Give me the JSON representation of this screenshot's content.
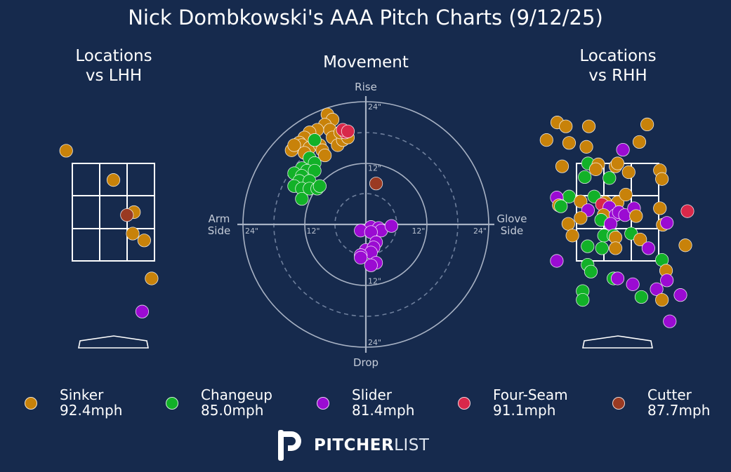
{
  "title": "Nick Dombkowski's AAA Pitch Charts (9/12/25)",
  "panels": {
    "lhh_title": "Locations\nvs LHH",
    "movement_title": "Movement",
    "rhh_title": "Locations\nvs RHH"
  },
  "movement_labels": {
    "rise": "Rise",
    "drop": "Drop",
    "arm_side": "Arm\nSide",
    "glove_side": "Glove\nSide",
    "ring_labels": [
      "12\"",
      "24\""
    ]
  },
  "colors": {
    "background": "#162a4d",
    "Sinker": "#c8820a",
    "Changeup": "#12b128",
    "Slider": "#9b0bd2",
    "Four-Seam": "#d8284a",
    "Cutter": "#9a3a22"
  },
  "legend": [
    {
      "name": "Sinker",
      "velo": "92.4mph"
    },
    {
      "name": "Changeup",
      "velo": "85.0mph"
    },
    {
      "name": "Slider",
      "velo": "81.4mph"
    },
    {
      "name": "Four-Seam",
      "velo": "91.1mph"
    },
    {
      "name": "Cutter",
      "velo": "87.7mph"
    }
  ],
  "logo": {
    "bold": "PITCHER",
    "light": "LIST"
  },
  "chart_data": [
    {
      "type": "scatter",
      "title": "Locations\nvs LHH",
      "xlabel": "",
      "ylabel": "",
      "note": "zone grid: x −1 to 1, y 0 to 1; points in zone units",
      "points": [
        {
          "pitch": "Sinker",
          "x": -1.15,
          "y": 1.13
        },
        {
          "pitch": "Sinker",
          "x": 0.0,
          "y": 0.83
        },
        {
          "pitch": "Sinker",
          "x": 0.5,
          "y": 0.5
        },
        {
          "pitch": "Cutter",
          "x": 0.33,
          "y": 0.47
        },
        {
          "pitch": "Sinker",
          "x": 0.47,
          "y": 0.28
        },
        {
          "pitch": "Sinker",
          "x": 0.75,
          "y": 0.21
        },
        {
          "pitch": "Sinker",
          "x": 0.93,
          "y": -0.18
        },
        {
          "pitch": "Slider",
          "x": 0.7,
          "y": -0.52
        }
      ]
    },
    {
      "type": "scatter",
      "title": "Movement",
      "xlabel": "Arm Side / Glove Side (in)",
      "ylabel": "Rise / Drop (in)",
      "xlim": [
        -24,
        24
      ],
      "ylim": [
        -24,
        24
      ],
      "points": [
        {
          "pitch": "Sinker",
          "x": -7.5,
          "y": 21.5
        },
        {
          "pitch": "Sinker",
          "x": -6.5,
          "y": 20.5
        },
        {
          "pitch": "Sinker",
          "x": -8.0,
          "y": 19.5
        },
        {
          "pitch": "Sinker",
          "x": -7.0,
          "y": 18.5
        },
        {
          "pitch": "Sinker",
          "x": -9.5,
          "y": 18.5
        },
        {
          "pitch": "Sinker",
          "x": -11.0,
          "y": 18.0
        },
        {
          "pitch": "Sinker",
          "x": -12.0,
          "y": 17.0
        },
        {
          "pitch": "Sinker",
          "x": -13.0,
          "y": 16.0
        },
        {
          "pitch": "Sinker",
          "x": -14.5,
          "y": 14.5
        },
        {
          "pitch": "Sinker",
          "x": -12.5,
          "y": 15.5
        },
        {
          "pitch": "Sinker",
          "x": -14.0,
          "y": 15.5
        },
        {
          "pitch": "Sinker",
          "x": -11.0,
          "y": 15.0
        },
        {
          "pitch": "Sinker",
          "x": -12.0,
          "y": 14.0
        },
        {
          "pitch": "Sinker",
          "x": -10.0,
          "y": 16.5
        },
        {
          "pitch": "Sinker",
          "x": -9.0,
          "y": 15.5
        },
        {
          "pitch": "Sinker",
          "x": -8.5,
          "y": 14.5
        },
        {
          "pitch": "Sinker",
          "x": -8.0,
          "y": 13.5
        },
        {
          "pitch": "Sinker",
          "x": -6.5,
          "y": 17.0
        },
        {
          "pitch": "Sinker",
          "x": -5.5,
          "y": 15.5
        },
        {
          "pitch": "Sinker",
          "x": -4.5,
          "y": 16.5
        },
        {
          "pitch": "Sinker",
          "x": -3.5,
          "y": 17.0
        },
        {
          "pitch": "Sinker",
          "x": -5.0,
          "y": 18.0
        },
        {
          "pitch": "Four-Seam",
          "x": -4.0,
          "y": 18.0
        },
        {
          "pitch": "Four-Seam",
          "x": -4.5,
          "y": 18.5
        },
        {
          "pitch": "Four-Seam",
          "x": -3.5,
          "y": 18.2
        },
        {
          "pitch": "Changeup",
          "x": -10.0,
          "y": 16.5
        },
        {
          "pitch": "Changeup",
          "x": -11.0,
          "y": 13.0
        },
        {
          "pitch": "Changeup",
          "x": -10.0,
          "y": 12.0
        },
        {
          "pitch": "Changeup",
          "x": -12.5,
          "y": 11.0
        },
        {
          "pitch": "Changeup",
          "x": -14.0,
          "y": 10.0
        },
        {
          "pitch": "Changeup",
          "x": -11.5,
          "y": 10.5
        },
        {
          "pitch": "Changeup",
          "x": -10.0,
          "y": 10.5
        },
        {
          "pitch": "Changeup",
          "x": -12.5,
          "y": 9.5
        },
        {
          "pitch": "Changeup",
          "x": -13.0,
          "y": 8.5
        },
        {
          "pitch": "Changeup",
          "x": -11.0,
          "y": 8.5
        },
        {
          "pitch": "Changeup",
          "x": -14.0,
          "y": 7.5
        },
        {
          "pitch": "Changeup",
          "x": -12.5,
          "y": 7.0
        },
        {
          "pitch": "Changeup",
          "x": -11.0,
          "y": 7.0
        },
        {
          "pitch": "Changeup",
          "x": -9.5,
          "y": 7.0
        },
        {
          "pitch": "Changeup",
          "x": -9.0,
          "y": 7.5
        },
        {
          "pitch": "Changeup",
          "x": -12.5,
          "y": 5.0
        },
        {
          "pitch": "Cutter",
          "x": 2.0,
          "y": 8.0
        },
        {
          "pitch": "Slider",
          "x": 1.0,
          "y": -0.5
        },
        {
          "pitch": "Slider",
          "x": 2.5,
          "y": -0.7
        },
        {
          "pitch": "Slider",
          "x": 3.0,
          "y": -1.2
        },
        {
          "pitch": "Slider",
          "x": 5.0,
          "y": -0.3
        },
        {
          "pitch": "Slider",
          "x": -1.0,
          "y": -1.2
        },
        {
          "pitch": "Slider",
          "x": 1.0,
          "y": -1.5
        },
        {
          "pitch": "Slider",
          "x": 2.0,
          "y": -3.5
        },
        {
          "pitch": "Slider",
          "x": 0.0,
          "y": -5.0
        },
        {
          "pitch": "Slider",
          "x": 1.5,
          "y": -4.5
        },
        {
          "pitch": "Slider",
          "x": 1.0,
          "y": -5.5
        },
        {
          "pitch": "Slider",
          "x": -1.0,
          "y": -6.0
        },
        {
          "pitch": "Slider",
          "x": 2.0,
          "y": -7.5
        },
        {
          "pitch": "Slider",
          "x": 1.0,
          "y": -8.0
        },
        {
          "pitch": "Slider",
          "x": -1.0,
          "y": -6.5
        }
      ]
    },
    {
      "type": "scatter",
      "title": "Locations\nvs RHH",
      "xlabel": "",
      "ylabel": "",
      "note": "zone grid: x −1 to 1, y 0 to 1; points in zone units",
      "points": [
        {
          "pitch": "Sinker",
          "x": -1.47,
          "y": 1.42
        },
        {
          "pitch": "Sinker",
          "x": -1.26,
          "y": 1.38
        },
        {
          "pitch": "Sinker",
          "x": -0.7,
          "y": 1.38
        },
        {
          "pitch": "Sinker",
          "x": 0.72,
          "y": 1.4
        },
        {
          "pitch": "Sinker",
          "x": -1.73,
          "y": 1.24
        },
        {
          "pitch": "Sinker",
          "x": -1.18,
          "y": 1.21
        },
        {
          "pitch": "Sinker",
          "x": -0.76,
          "y": 1.17
        },
        {
          "pitch": "Sinker",
          "x": 0.53,
          "y": 1.22
        },
        {
          "pitch": "Slider",
          "x": 0.13,
          "y": 1.14
        },
        {
          "pitch": "Sinker",
          "x": -1.35,
          "y": 0.97
        },
        {
          "pitch": "Changeup",
          "x": -0.72,
          "y": 1.0
        },
        {
          "pitch": "Sinker",
          "x": -0.47,
          "y": 0.99
        },
        {
          "pitch": "Sinker",
          "x": -0.53,
          "y": 0.94
        },
        {
          "pitch": "Sinker",
          "x": -0.05,
          "y": 0.97
        },
        {
          "pitch": "Sinker",
          "x": 0.0,
          "y": 1.0
        },
        {
          "pitch": "Sinker",
          "x": 0.27,
          "y": 0.91
        },
        {
          "pitch": "Sinker",
          "x": 1.03,
          "y": 0.93
        },
        {
          "pitch": "Sinker",
          "x": 1.08,
          "y": 0.84
        },
        {
          "pitch": "Changeup",
          "x": -0.8,
          "y": 0.86
        },
        {
          "pitch": "Changeup",
          "x": -0.2,
          "y": 0.85
        },
        {
          "pitch": "Changeup",
          "x": -1.18,
          "y": 0.66
        },
        {
          "pitch": "Slider",
          "x": -1.48,
          "y": 0.65
        },
        {
          "pitch": "Changeup",
          "x": -0.57,
          "y": 0.66
        },
        {
          "pitch": "Sinker",
          "x": -1.43,
          "y": 0.57
        },
        {
          "pitch": "Changeup",
          "x": -1.38,
          "y": 0.56
        },
        {
          "pitch": "Sinker",
          "x": -0.9,
          "y": 0.61
        },
        {
          "pitch": "Slider",
          "x": -0.72,
          "y": 0.52
        },
        {
          "pitch": "Sinker",
          "x": -0.3,
          "y": 0.6
        },
        {
          "pitch": "Sinker",
          "x": 0.0,
          "y": 0.6
        },
        {
          "pitch": "Sinker",
          "x": 0.2,
          "y": 0.68
        },
        {
          "pitch": "Four-Seam",
          "x": -0.38,
          "y": 0.58
        },
        {
          "pitch": "Slider",
          "x": -0.2,
          "y": 0.55
        },
        {
          "pitch": "Sinker",
          "x": -0.34,
          "y": 0.47
        },
        {
          "pitch": "Slider",
          "x": -0.05,
          "y": 0.47
        },
        {
          "pitch": "Slider",
          "x": 0.03,
          "y": 0.5
        },
        {
          "pitch": "Slider",
          "x": 0.18,
          "y": 0.47
        },
        {
          "pitch": "Slider",
          "x": 0.4,
          "y": 0.54
        },
        {
          "pitch": "Sinker",
          "x": 0.45,
          "y": 0.46
        },
        {
          "pitch": "Sinker",
          "x": 1.03,
          "y": 0.54
        },
        {
          "pitch": "Four-Seam",
          "x": 1.7,
          "y": 0.51
        },
        {
          "pitch": "Sinker",
          "x": -0.9,
          "y": 0.44
        },
        {
          "pitch": "Changeup",
          "x": -0.4,
          "y": 0.42
        },
        {
          "pitch": "Slider",
          "x": -0.17,
          "y": 0.38
        },
        {
          "pitch": "Sinker",
          "x": 1.1,
          "y": 0.37
        },
        {
          "pitch": "Slider",
          "x": 1.2,
          "y": 0.39
        },
        {
          "pitch": "Sinker",
          "x": -1.2,
          "y": 0.38
        },
        {
          "pitch": "Sinker",
          "x": -1.1,
          "y": 0.26
        },
        {
          "pitch": "Changeup",
          "x": -0.33,
          "y": 0.26
        },
        {
          "pitch": "Changeup",
          "x": -0.1,
          "y": 0.26
        },
        {
          "pitch": "Sinker",
          "x": -0.05,
          "y": 0.24
        },
        {
          "pitch": "Changeup",
          "x": 0.33,
          "y": 0.28
        },
        {
          "pitch": "Sinker",
          "x": 0.55,
          "y": 0.22
        },
        {
          "pitch": "Changeup",
          "x": -0.73,
          "y": 0.15
        },
        {
          "pitch": "Changeup",
          "x": -0.38,
          "y": 0.13
        },
        {
          "pitch": "Sinker",
          "x": -0.05,
          "y": 0.13
        },
        {
          "pitch": "Slider",
          "x": 0.75,
          "y": 0.13
        },
        {
          "pitch": "Sinker",
          "x": 1.65,
          "y": 0.16
        },
        {
          "pitch": "Changeup",
          "x": 1.08,
          "y": 0.01
        },
        {
          "pitch": "Slider",
          "x": -1.48,
          "y": 0.0
        },
        {
          "pitch": "Changeup",
          "x": -0.73,
          "y": -0.04
        },
        {
          "pitch": "Changeup",
          "x": -0.65,
          "y": -0.11
        },
        {
          "pitch": "Sinker",
          "x": 1.18,
          "y": -0.1
        },
        {
          "pitch": "Changeup",
          "x": -0.1,
          "y": -0.18
        },
        {
          "pitch": "Slider",
          "x": 0.0,
          "y": -0.18
        },
        {
          "pitch": "Slider",
          "x": 0.37,
          "y": -0.24
        },
        {
          "pitch": "Slider",
          "x": 1.2,
          "y": -0.2
        },
        {
          "pitch": "Slider",
          "x": 0.95,
          "y": -0.29
        },
        {
          "pitch": "Changeup",
          "x": -0.85,
          "y": -0.31
        },
        {
          "pitch": "Changeup",
          "x": 0.58,
          "y": -0.37
        },
        {
          "pitch": "Slider",
          "x": 1.53,
          "y": -0.35
        },
        {
          "pitch": "Changeup",
          "x": -0.85,
          "y": -0.4
        },
        {
          "pitch": "Sinker",
          "x": 1.08,
          "y": -0.4
        },
        {
          "pitch": "Slider",
          "x": 1.27,
          "y": -0.62
        }
      ]
    }
  ]
}
